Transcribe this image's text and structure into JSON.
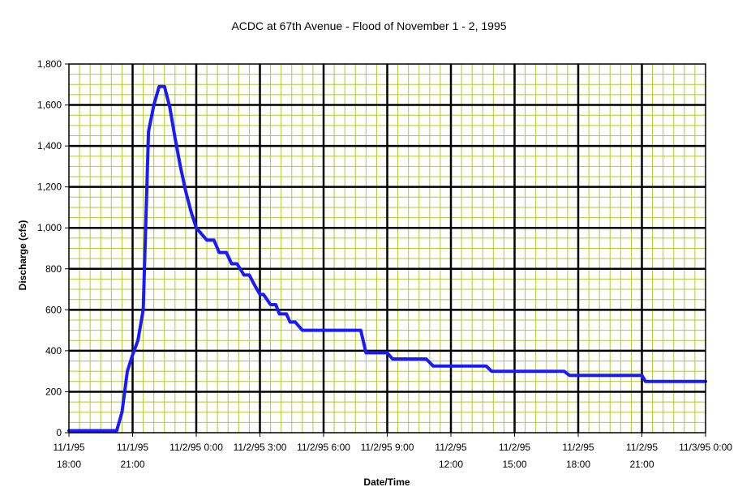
{
  "chart_data": {
    "type": "line",
    "title": "ACDC at 67th Avenue - Flood of November 1 - 2, 1995",
    "xlabel": "Date/Time",
    "ylabel": "Discharge (cfs)",
    "ylim": [
      0,
      1800
    ],
    "yticks": [
      0,
      200,
      400,
      600,
      800,
      1000,
      1200,
      1400,
      1600,
      1800
    ],
    "ytick_labels": [
      "0",
      "200",
      "400",
      "600",
      "800",
      "1,000",
      "1,200",
      "1,400",
      "1,600",
      "1,800"
    ],
    "xlim": [
      "1995-11-01 18:00",
      "1995-11-03 00:00"
    ],
    "xtick_labels": [
      {
        "line1": "11/1/95",
        "line2": "18:00"
      },
      {
        "line1": "11/1/95",
        "line2": "21:00"
      },
      {
        "line1": "11/2/95 0:00",
        "line2": ""
      },
      {
        "line1": "11/2/95 3:00",
        "line2": ""
      },
      {
        "line1": "11/2/95 6:00",
        "line2": ""
      },
      {
        "line1": "11/2/95 9:00",
        "line2": ""
      },
      {
        "line1": "11/2/95",
        "line2": "12:00"
      },
      {
        "line1": "11/2/95",
        "line2": "15:00"
      },
      {
        "line1": "11/2/95",
        "line2": "18:00"
      },
      {
        "line1": "11/2/95",
        "line2": "21:00"
      },
      {
        "line1": "11/3/95 0:00",
        "line2": ""
      }
    ],
    "grid": {
      "major": true,
      "minor": true
    },
    "colors": {
      "series": "#1a1aff",
      "major_grid": "#000000",
      "minor_grid": "#b5c832",
      "background": "#ffffff"
    },
    "series": [
      {
        "x": [
          "1995-11-01 18:00",
          "1995-11-01 20:15",
          "1995-11-01 20:30",
          "1995-11-01 20:45",
          "1995-11-01 21:00",
          "1995-11-01 21:15",
          "1995-11-01 21:30",
          "1995-11-01 21:45",
          "1995-11-01 22:00",
          "1995-11-01 22:15",
          "1995-11-01 22:30",
          "1995-11-01 22:45",
          "1995-11-01 23:00",
          "1995-11-01 23:15",
          "1995-11-01 23:30",
          "1995-11-01 23:45",
          "1995-11-02 00:00",
          "1995-11-02 00:30",
          "1995-11-02 00:50",
          "1995-11-02 01:05",
          "1995-11-02 01:25",
          "1995-11-02 01:40",
          "1995-11-02 01:55",
          "1995-11-02 02:15",
          "1995-11-02 02:30",
          "1995-11-02 02:45",
          "1995-11-02 03:00",
          "1995-11-02 03:10",
          "1995-11-02 03:30",
          "1995-11-02 03:45",
          "1995-11-02 03:55",
          "1995-11-02 04:15",
          "1995-11-02 04:25",
          "1995-11-02 04:40",
          "1995-11-02 05:00",
          "1995-11-02 05:10",
          "1995-11-02 05:30",
          "1995-11-02 05:40",
          "1995-11-02 07:45",
          "1995-11-02 08:00",
          "1995-11-02 09:00",
          "1995-11-02 09:15",
          "1995-11-02 10:50",
          "1995-11-02 11:10",
          "1995-11-02 13:40",
          "1995-11-02 13:55",
          "1995-11-02 17:20",
          "1995-11-02 17:35",
          "1995-11-02 21:00",
          "1995-11-02 21:10",
          "1995-11-03 00:00"
        ],
        "y": [
          10,
          10,
          100,
          300,
          380,
          450,
          600,
          1470,
          1600,
          1690,
          1690,
          1590,
          1440,
          1300,
          1180,
          1080,
          1000,
          940,
          940,
          880,
          880,
          825,
          825,
          770,
          770,
          720,
          675,
          675,
          625,
          625,
          580,
          580,
          540,
          540,
          500,
          500,
          500,
          500,
          500,
          390,
          390,
          360,
          360,
          325,
          325,
          300,
          300,
          280,
          280,
          250,
          250
        ]
      }
    ]
  }
}
